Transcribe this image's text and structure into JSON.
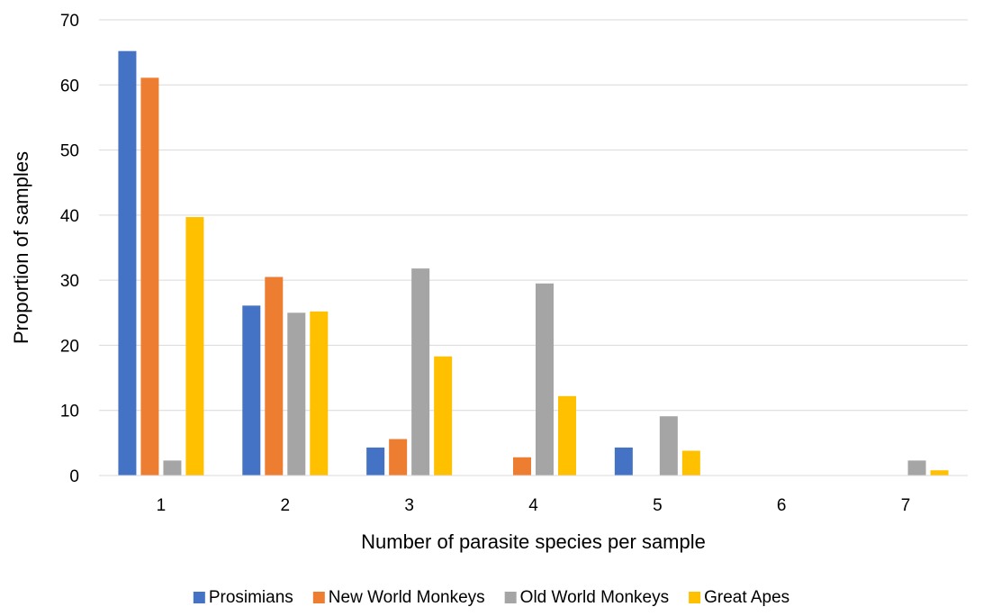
{
  "chart_data": {
    "type": "bar",
    "xlabel": "Number of parasite species per sample",
    "ylabel": "Proportion of samples",
    "ylim": [
      0,
      70
    ],
    "yticks": [
      0,
      10,
      20,
      30,
      40,
      50,
      60,
      70
    ],
    "grid": "horizontal",
    "legend_position": "bottom",
    "categories": [
      "1",
      "2",
      "3",
      "4",
      "5",
      "6",
      "7"
    ],
    "series": [
      {
        "name": "Prosimians",
        "color": "#4472C4",
        "values": [
          65.2,
          26.1,
          4.3,
          0,
          4.3,
          0,
          0
        ]
      },
      {
        "name": "New World Monkeys",
        "color": "#ED7D31",
        "values": [
          61.1,
          30.5,
          5.6,
          2.8,
          0,
          0,
          0
        ]
      },
      {
        "name": "Old World Monkeys",
        "color": "#A5A5A5",
        "values": [
          2.3,
          25.0,
          31.8,
          29.5,
          9.1,
          0,
          2.3
        ]
      },
      {
        "name": "Great Apes",
        "color": "#FFC000",
        "values": [
          39.7,
          25.2,
          18.3,
          12.2,
          3.8,
          0,
          0.8
        ]
      }
    ]
  }
}
